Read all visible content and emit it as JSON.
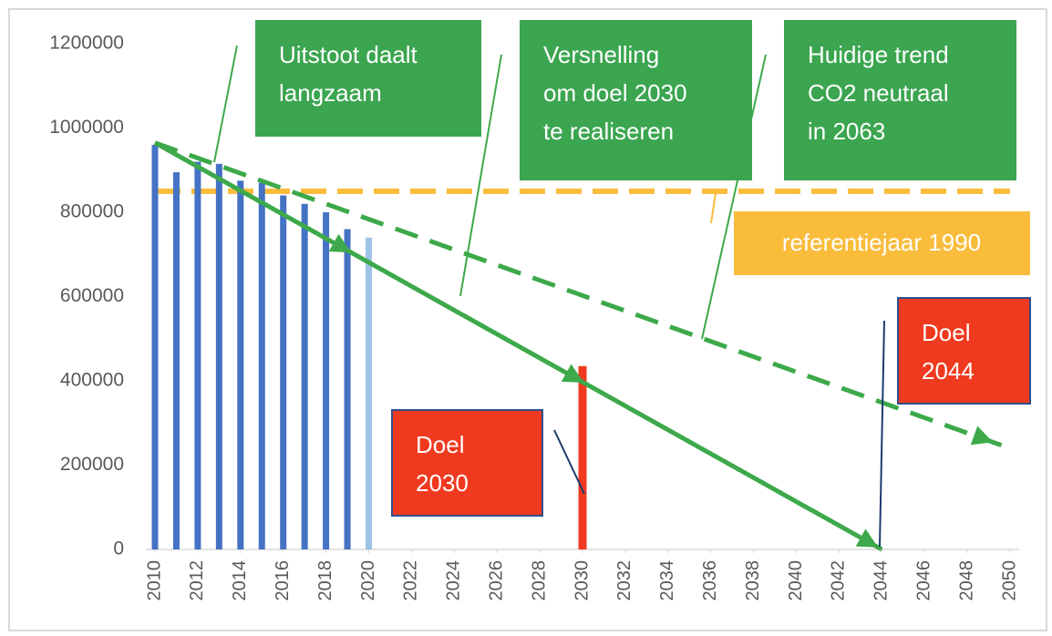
{
  "chart_data": {
    "type": "bar",
    "x": [
      2010,
      2011,
      2012,
      2013,
      2014,
      2015,
      2016,
      2017,
      2018,
      2019,
      2020
    ],
    "values": [
      960000,
      895000,
      920000,
      915000,
      875000,
      870000,
      840000,
      820000,
      800000,
      760000,
      740000
    ],
    "colors": [
      "#4472c4",
      "#4472c4",
      "#4472c4",
      "#4472c4",
      "#4472c4",
      "#4472c4",
      "#4472c4",
      "#4472c4",
      "#4472c4",
      "#4472c4",
      "#9dc3e6"
    ],
    "goal_bars": [
      {
        "x": 2030,
        "value": 435000,
        "color": "#f03a1f"
      }
    ],
    "reference": {
      "value": 850000,
      "label": "referentiejaar 1990",
      "color": "#f9bc3b"
    },
    "lines": [
      {
        "x": [
          2010,
          2044
        ],
        "values": [
          965000,
          0
        ],
        "color": "#3da94a",
        "dash": false
      },
      {
        "x": [
          2010,
          2050
        ],
        "values": [
          965000,
          240000
        ],
        "color": "#3da94a",
        "dash": true
      }
    ],
    "annotations": [
      {
        "lines": [
          "Uitstoot daalt",
          "langzaam"
        ],
        "color": "#3ba550"
      },
      {
        "lines": [
          "Versnelling",
          "om doel 2030",
          "te realiseren"
        ],
        "color": "#3ba550"
      },
      {
        "lines": [
          "Huidige trend",
          "CO2 neutraal",
          "in 2063"
        ],
        "color": "#3ba550"
      },
      {
        "lines": [
          "Doel",
          "2030"
        ],
        "color": "#f03a1f"
      },
      {
        "lines": [
          "Doel",
          "2044"
        ],
        "color": "#f03a1f"
      }
    ],
    "xlim": [
      2010,
      2050
    ],
    "xticks": [
      2010,
      2012,
      2014,
      2016,
      2018,
      2020,
      2022,
      2024,
      2026,
      2028,
      2030,
      2032,
      2034,
      2036,
      2038,
      2040,
      2042,
      2044,
      2046,
      2048,
      2050
    ],
    "ylim": [
      0,
      1200000
    ],
    "yticks": [
      0,
      200000,
      400000,
      600000,
      800000,
      1000000,
      1200000
    ]
  }
}
